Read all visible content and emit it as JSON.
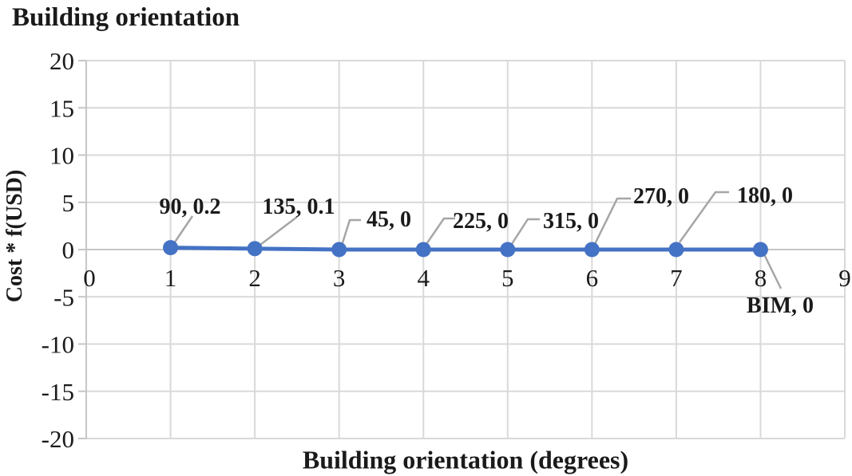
{
  "chart_data": {
    "type": "line",
    "title": "Building orientation",
    "xlabel": "Building orientation (degrees)",
    "ylabel": "Cost * f(USD)",
    "xlim": [
      0,
      9
    ],
    "ylim": [
      -20,
      20
    ],
    "x_ticks": [
      0,
      1,
      2,
      3,
      4,
      5,
      6,
      7,
      8,
      9
    ],
    "y_ticks": [
      20,
      15,
      10,
      5,
      0,
      -5,
      -10,
      -15,
      -20
    ],
    "grid": true,
    "legend": "none",
    "series": [
      {
        "name": "Cost * f(USD)",
        "x": [
          1,
          2,
          3,
          4,
          5,
          6,
          7,
          8
        ],
        "y": [
          0.2,
          0.1,
          0,
          0,
          0,
          0,
          0,
          0
        ],
        "point_labels": [
          "90, 0.2",
          "135, 0.1",
          "45, 0",
          "225, 0",
          "315, 0",
          "270, 0",
          "180, 0",
          "BIM, 0"
        ],
        "color": "#4472C4"
      }
    ],
    "colors": {
      "series": "#4472C4",
      "gridline": "#D9D9D9",
      "axis": "#C6C6C6",
      "leader": "#A6A6A6",
      "text": "#1A1A1A"
    }
  }
}
